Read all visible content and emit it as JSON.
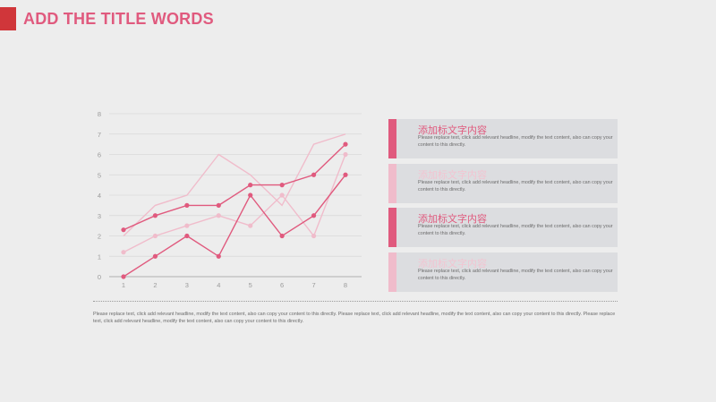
{
  "header": {
    "title": "ADD THE TITLE WORDS"
  },
  "colors": {
    "strong": "#e05a7e",
    "light": "#f0bccb",
    "grid": "#d8d8d8",
    "axis": "#b0b0b0",
    "tick": "#9a9a9a"
  },
  "chart_data": {
    "type": "line",
    "categories": [
      "1",
      "2",
      "3",
      "4",
      "5",
      "6",
      "7",
      "8"
    ],
    "y_ticks": [
      "0",
      "1",
      "2",
      "3",
      "4",
      "5",
      "6",
      "7",
      "8"
    ],
    "ylim": [
      0,
      8
    ],
    "grid": true,
    "series": [
      {
        "values": [
          2.3,
          3.0,
          3.5,
          3.5,
          4.5,
          4.5,
          5.0,
          6.5
        ],
        "color": "#e05a7e",
        "markers": true
      },
      {
        "values": [
          0,
          1.0,
          2.0,
          1.0,
          4.0,
          2.0,
          3.0,
          5.0
        ],
        "color": "#e05a7e",
        "markers": true
      },
      {
        "values": [
          2.0,
          3.5,
          4.0,
          6.0,
          5.0,
          3.5,
          6.5,
          7.0
        ],
        "color": "#f0bccb",
        "markers": false
      },
      {
        "values": [
          1.2,
          2.0,
          2.5,
          3.0,
          2.5,
          4.0,
          2.0,
          6.0
        ],
        "color": "#f0bccb",
        "markers": true
      }
    ]
  },
  "cards": [
    {
      "title": "添加标文字内容",
      "body": "Please replace text, click add relevant headline, modify the text content, also can copy your content to this directly.",
      "accent": "#e05a7e",
      "title_color": "#e05a7e"
    },
    {
      "title": "添加标文字内容",
      "body": "Please replace text, click add relevant headline, modify the text content, also can copy your content to this directly.",
      "accent": "#f0bccb",
      "title_color": "#f2c4d1"
    },
    {
      "title": "添加标文字内容",
      "body": "Please replace text, click add relevant headline, modify the text content, also can copy your content to this directly.",
      "accent": "#e05a7e",
      "title_color": "#e05a7e"
    },
    {
      "title": "添加标文字内容",
      "body": "Please replace text, click add relevant headline, modify the text content, also can copy your content to this directly.",
      "accent": "#f0bccb",
      "title_color": "#f2c4d1"
    }
  ],
  "footnote": "Please replace text, click add relevant headline, modify the text content, also can copy your content to this directly. Please replace text, click add relevant headline, modify the text content, also can copy your content to this directly. Please replace text, click add relevant headline, modify the text content, also can copy your content to this directly."
}
